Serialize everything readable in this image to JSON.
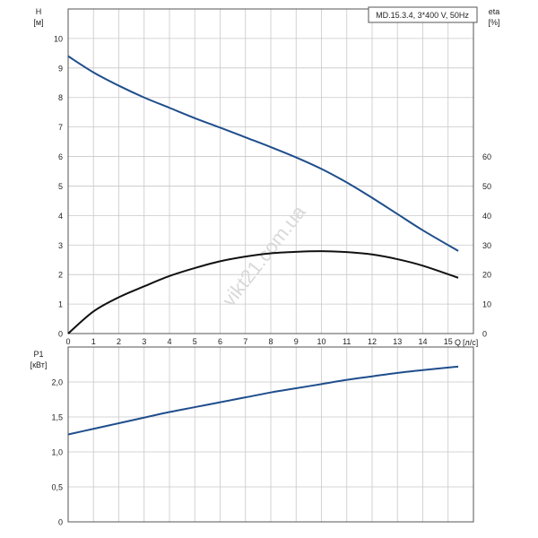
{
  "colors": {
    "head_curve": "#1f4e8c",
    "eta_curve": "#111111",
    "power_curve": "#1f4e8c",
    "grid": "#c8c8c8",
    "frame": "#555555",
    "watermark": "#d9d9d9"
  },
  "watermark": "vikt21.com.ua",
  "chart_data": [
    {
      "type": "line",
      "title": "MD.15.3.4, 3*400 V, 50Hz",
      "ylabel": "H",
      "yunit": "[м]",
      "ylabel_right": "eta",
      "yunit_right": "[%]",
      "xlabel": "Q",
      "xunit": "[л/с]",
      "xlim": [
        0,
        16
      ],
      "ylim": [
        0,
        11
      ],
      "ylim_right": [
        0,
        110
      ],
      "x_ticks": [
        "0",
        "1",
        "2",
        "3",
        "4",
        "5",
        "6",
        "7",
        "8",
        "9",
        "10",
        "11",
        "12",
        "13",
        "14",
        "15"
      ],
      "y_ticks": [
        "0",
        "1",
        "2",
        "3",
        "4",
        "5",
        "6",
        "7",
        "8",
        "9",
        "10"
      ],
      "y_ticks_right": [
        "0",
        "10",
        "20",
        "30",
        "40",
        "50",
        "60"
      ],
      "grid": true,
      "series": [
        {
          "name": "H",
          "axis": "left",
          "x": [
            0,
            1,
            2,
            3,
            4,
            5,
            6,
            7,
            8,
            9,
            10,
            11,
            12,
            13,
            14,
            15.4
          ],
          "y": [
            9.4,
            8.85,
            8.4,
            8.0,
            7.65,
            7.3,
            6.98,
            6.65,
            6.32,
            5.97,
            5.58,
            5.12,
            4.6,
            4.05,
            3.5,
            2.8
          ]
        },
        {
          "name": "eta",
          "axis": "right",
          "x": [
            0,
            1,
            2,
            3,
            4,
            5,
            6,
            7,
            8,
            9,
            10,
            11,
            12,
            13,
            14,
            15.4
          ],
          "y": [
            0,
            7.5,
            12.3,
            16.0,
            19.5,
            22.2,
            24.5,
            26.1,
            27.2,
            27.7,
            27.9,
            27.6,
            26.8,
            25.2,
            23.0,
            18.9
          ]
        }
      ]
    },
    {
      "type": "line",
      "ylabel": "P1",
      "yunit": "[кВт]",
      "xlim": [
        0,
        16
      ],
      "ylim": [
        0,
        2.5
      ],
      "y_ticks": [
        "0",
        "0,5",
        "1,0",
        "1,5",
        "2,0"
      ],
      "grid": true,
      "series": [
        {
          "name": "P1",
          "x": [
            0,
            1,
            2,
            3,
            4,
            5,
            6,
            7,
            8,
            9,
            10,
            11,
            12,
            13,
            14,
            15.4
          ],
          "y": [
            1.25,
            1.33,
            1.41,
            1.49,
            1.57,
            1.64,
            1.71,
            1.78,
            1.85,
            1.91,
            1.97,
            2.03,
            2.08,
            2.13,
            2.17,
            2.22
          ]
        }
      ]
    }
  ]
}
